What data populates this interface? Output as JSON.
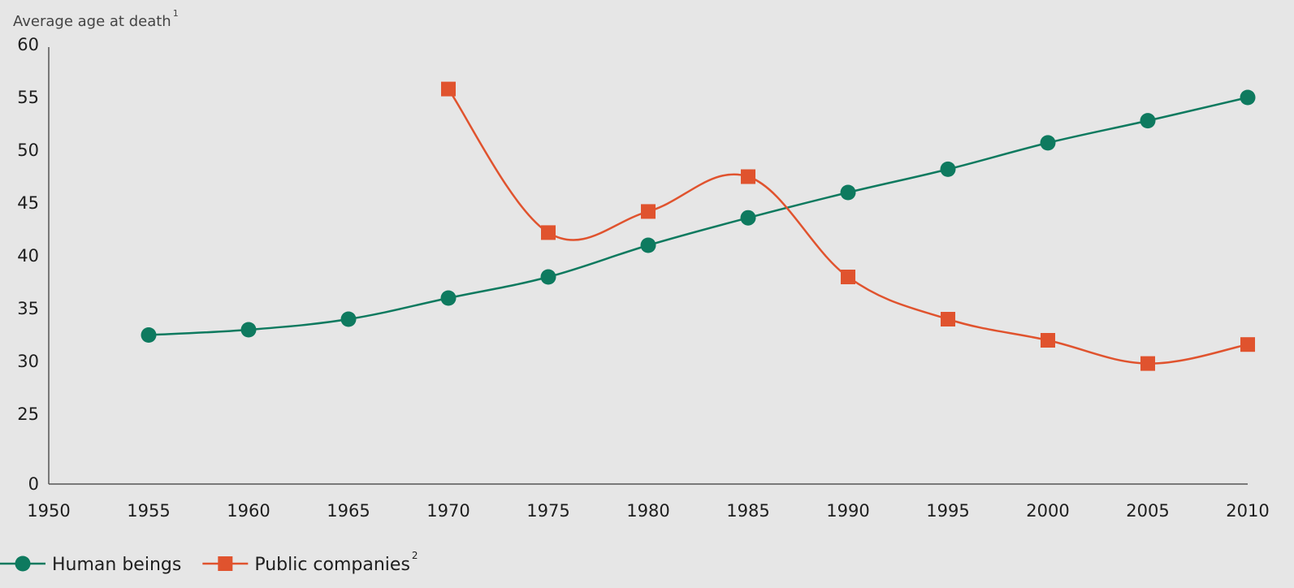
{
  "chart_data": {
    "type": "line",
    "ylabel": "Average age at death",
    "ylabel_sup": "1",
    "xlim": [
      1950,
      2010
    ],
    "ylim": [
      0,
      60
    ],
    "y_axis_break": "between 0 and 25",
    "x_ticks": [
      "1950",
      "1955",
      "1960",
      "1965",
      "1970",
      "1975",
      "1980",
      "1985",
      "1990",
      "1995",
      "2000",
      "2005",
      "2010"
    ],
    "y_ticks": [
      "0",
      "25",
      "30",
      "35",
      "40",
      "45",
      "50",
      "55",
      "60"
    ],
    "grid": false,
    "legend_position": "bottom-left",
    "series": [
      {
        "name": "Human beings",
        "sup": "",
        "color": "#0e7a5f",
        "marker": "circle",
        "x": [
          1955,
          1960,
          1965,
          1970,
          1975,
          1980,
          1985,
          1990,
          1995,
          2000,
          2005,
          2010
        ],
        "y": [
          32.5,
          33,
          34,
          36,
          38,
          41,
          43.6,
          46,
          48.2,
          50.7,
          52.8,
          55
        ]
      },
      {
        "name": "Public companies",
        "sup": "2",
        "color": "#e0532e",
        "marker": "square",
        "x": [
          1970,
          1975,
          1980,
          1985,
          1990,
          1995,
          2000,
          2005,
          2010
        ],
        "y": [
          55.8,
          42.2,
          44.2,
          47.5,
          38,
          34,
          32,
          29.8,
          31.6
        ]
      }
    ]
  }
}
